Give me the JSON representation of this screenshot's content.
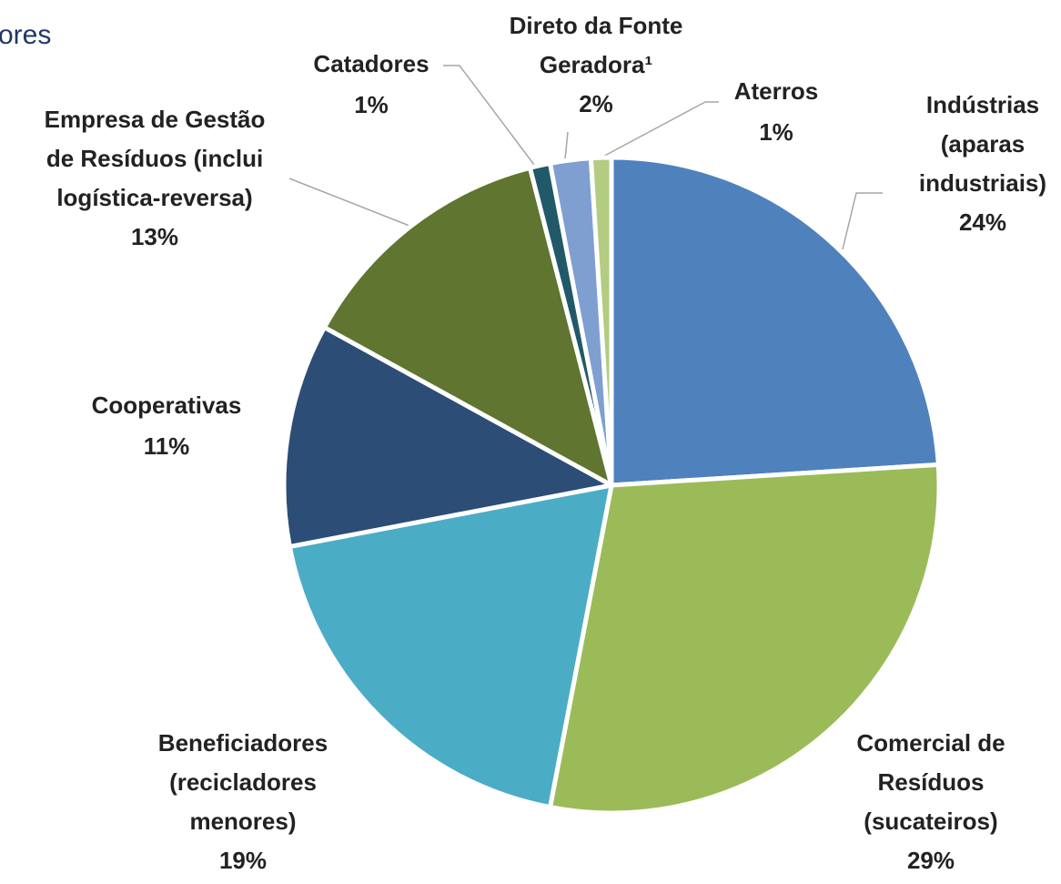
{
  "chart_data": {
    "type": "pie",
    "title": "ores",
    "categories": [
      [
        "Indústrias",
        "(aparas",
        "industriais)"
      ],
      [
        "Comercial de",
        "Resíduos",
        "(sucateiros)"
      ],
      [
        "Beneficiadores",
        "(recicladores",
        "menores)"
      ],
      [
        "Cooperativas"
      ],
      [
        "Empresa de Gestão",
        "de Resíduos (inclui",
        "logística-reversa)"
      ],
      [
        "Catadores"
      ],
      [
        "Direto da Fonte",
        "Geradora¹"
      ],
      [
        "Aterros"
      ]
    ],
    "values": [
      24,
      29,
      19,
      11,
      13,
      1,
      2,
      1
    ],
    "value_labels": [
      "24%",
      "29%",
      "19%",
      "11%",
      "13%",
      "1%",
      "2%",
      "1%"
    ],
    "colors": [
      "#4f81bd",
      "#9bbb59",
      "#4bacc6",
      "#2c4d75",
      "#5f7530",
      "#215968",
      "#7f9fd1",
      "#b3cc82"
    ]
  }
}
